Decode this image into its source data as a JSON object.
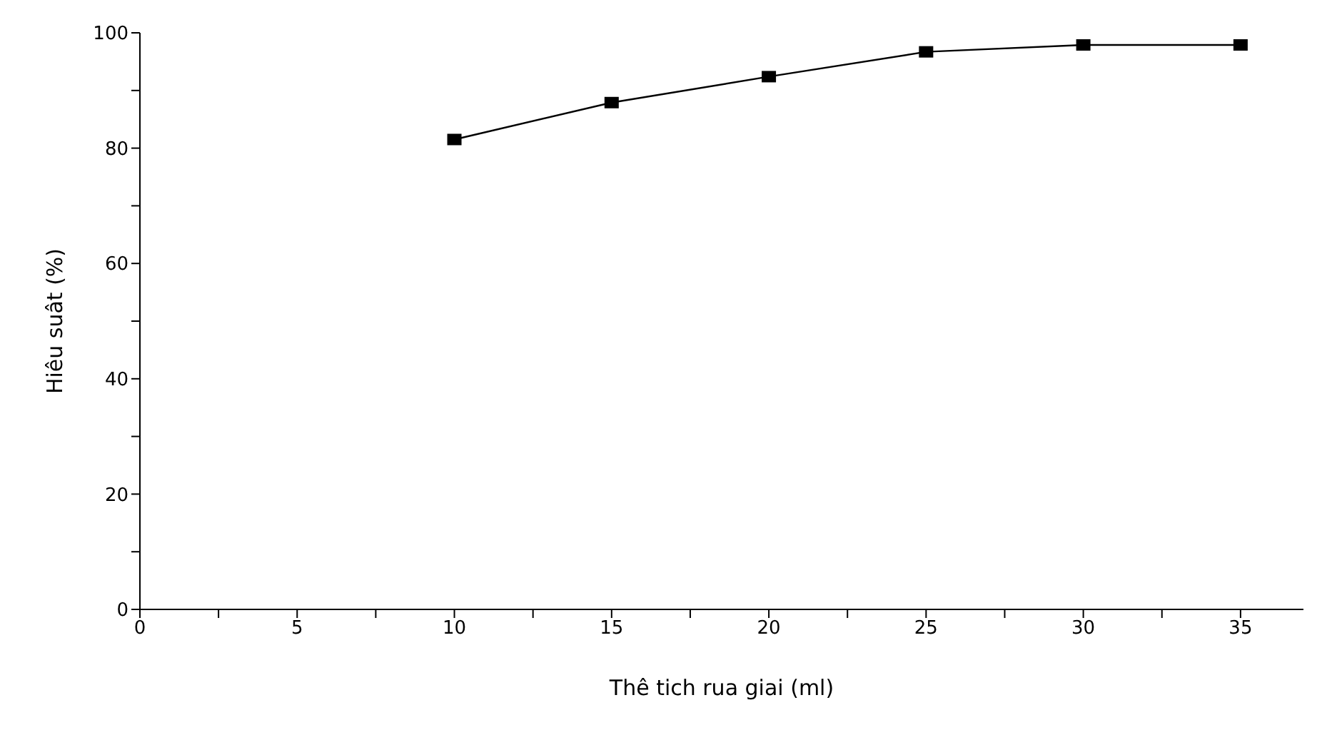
{
  "chart_data": {
    "type": "line",
    "xlabel": "Thê tich rua giai (ml)",
    "ylabel": "Hiêu suât (%)",
    "x": [
      10,
      15,
      20,
      25,
      30,
      35
    ],
    "series": [
      {
        "color": "#000000",
        "values": [
          81.5,
          87.9,
          92.4,
          96.7,
          97.9,
          97.9
        ]
      }
    ],
    "xlim": [
      0,
      37
    ],
    "xticks": [
      0,
      {
        "value": 2.5,
        "label": null
      },
      5,
      {
        "value": 7.5,
        "label": null
      },
      10,
      {
        "value": 12.5,
        "label": null
      },
      15,
      {
        "value": 17.5,
        "label": null
      },
      20,
      {
        "value": 22.5,
        "label": null
      },
      25,
      {
        "value": 27.5,
        "label": null
      },
      30,
      {
        "value": 32.5,
        "label": null
      },
      35
    ],
    "ylim": [
      0,
      100
    ],
    "yticks": [
      0,
      {
        "value": 10,
        "label": null
      },
      20,
      {
        "value": 30,
        "label": null
      },
      40,
      {
        "value": 50,
        "label": null
      },
      60,
      {
        "value": 70,
        "label": null
      },
      80,
      {
        "value": 90,
        "label": null
      },
      100
    ],
    "grid": false,
    "legend": false,
    "marker": "square",
    "line_style": "solid"
  }
}
